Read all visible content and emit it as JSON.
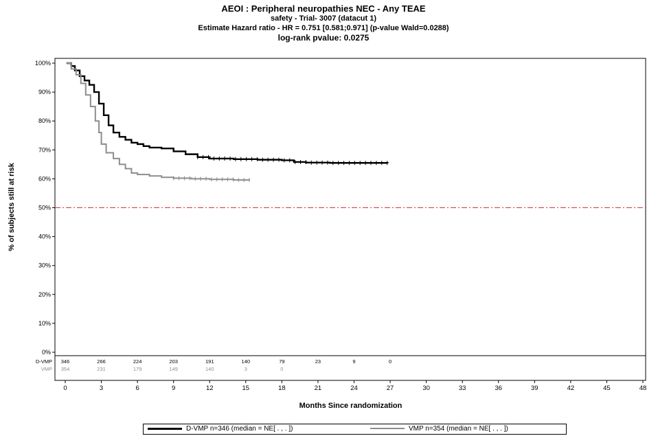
{
  "titles": {
    "title": "AEOI : Peripheral neuropathies NEC - Any TEAE",
    "subtitle1": "safety - Trial- 3007 (datacut 1)",
    "subtitle2": "Estimate Hazard ratio - HR = 0.751 [0.581;0.971] (p-value Wald=0.0288)",
    "subtitle3": "log-rank pvalue: 0.0275"
  },
  "chart_data": {
    "type": "line",
    "step": true,
    "xlabel": "Months Since randomization",
    "ylabel": "% of subjects still at risk",
    "xlim": [
      0,
      48
    ],
    "ylim": [
      0,
      100
    ],
    "xticks": [
      0,
      3,
      6,
      9,
      12,
      15,
      18,
      21,
      24,
      27,
      30,
      33,
      36,
      39,
      42,
      45,
      48
    ],
    "yticks": [
      "0%",
      "10%",
      "20%",
      "30%",
      "40%",
      "50%",
      "60%",
      "70%",
      "80%",
      "90%",
      "100%"
    ],
    "reference_line": {
      "y": 50,
      "color": "#d4343c",
      "style": "dash-dot"
    },
    "grid": false,
    "series": [
      {
        "name": "D-VMP",
        "color": "#000000",
        "points": [
          [
            0.1,
            100
          ],
          [
            0.5,
            99
          ],
          [
            0.8,
            97.5
          ],
          [
            1.2,
            95.5
          ],
          [
            1.6,
            94
          ],
          [
            2.0,
            92.5
          ],
          [
            2.4,
            90
          ],
          [
            2.8,
            86
          ],
          [
            3.2,
            82
          ],
          [
            3.6,
            78.5
          ],
          [
            4.0,
            76
          ],
          [
            4.5,
            74.5
          ],
          [
            5.0,
            73.5
          ],
          [
            5.5,
            72.5
          ],
          [
            6.0,
            72
          ],
          [
            6.5,
            71.3
          ],
          [
            7.0,
            70.8
          ],
          [
            8.0,
            70.5
          ],
          [
            9.0,
            69.5
          ],
          [
            10.0,
            68.5
          ],
          [
            11.0,
            67.5
          ],
          [
            12.0,
            67
          ],
          [
            14.0,
            66.8
          ],
          [
            16.0,
            66.6
          ],
          [
            18.0,
            66.4
          ],
          [
            19.0,
            65.8
          ],
          [
            20.0,
            65.6
          ],
          [
            22.0,
            65.5
          ],
          [
            26.8,
            65.4
          ]
        ],
        "censor_from_month": 11
      },
      {
        "name": "VMP",
        "color": "#8c8c8c",
        "points": [
          [
            0.1,
            100
          ],
          [
            0.5,
            98
          ],
          [
            0.9,
            96
          ],
          [
            1.3,
            93
          ],
          [
            1.7,
            89
          ],
          [
            2.1,
            85
          ],
          [
            2.5,
            80
          ],
          [
            2.8,
            76
          ],
          [
            3.0,
            72
          ],
          [
            3.4,
            69
          ],
          [
            4.0,
            67
          ],
          [
            4.5,
            65
          ],
          [
            5.0,
            63.5
          ],
          [
            5.5,
            62
          ],
          [
            6.0,
            61.5
          ],
          [
            7.0,
            61
          ],
          [
            8.0,
            60.5
          ],
          [
            9.0,
            60.2
          ],
          [
            10.5,
            60
          ],
          [
            12.0,
            59.8
          ],
          [
            14.0,
            59.6
          ],
          [
            15.3,
            59.5
          ]
        ],
        "censor_from_month": 9
      }
    ],
    "risk_table": {
      "rows": [
        {
          "label": "D-VMP",
          "values": [
            "346",
            "266",
            "224",
            "203",
            "191",
            "140",
            "79",
            "23",
            "9",
            "0"
          ]
        },
        {
          "label": "VMP",
          "values": [
            "354",
            "231",
            "179",
            "149",
            "140",
            "3",
            "0",
            "",
            "",
            ""
          ]
        }
      ],
      "times": [
        0,
        3,
        6,
        9,
        12,
        15,
        18,
        21,
        24,
        27
      ]
    }
  },
  "legend": [
    {
      "label": "D-VMP  n=346 (median = NE[   .   ,   .   ])",
      "color": "#000000"
    },
    {
      "label": "VMP  n=354 (median = NE[   .   ,   .   ])",
      "color": "#8c8c8c"
    }
  ]
}
